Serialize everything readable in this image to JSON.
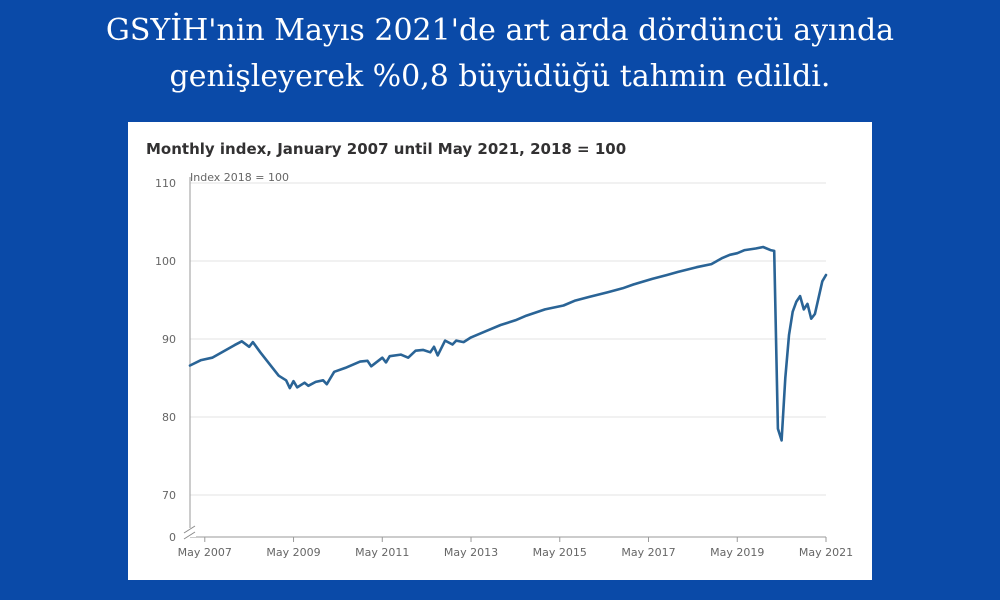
{
  "headline": {
    "line1": "GSYİH'nin Mayıs 2021'de art arda dördüncü ayında",
    "line2": "genişleyerek %0,8 büyüdüğü tahmin edildi."
  },
  "colors": {
    "background": "#0a4aa8",
    "line": "#2a6496",
    "card": "#ffffff"
  },
  "chart_data": {
    "type": "line",
    "title": "Monthly index, January 2007 until May 2021, 2018 = 100",
    "ylabel": "Index 2018 = 100",
    "ylim": [
      0,
      110
    ],
    "axis_break": [
      0,
      70
    ],
    "y_ticks": [
      "110",
      "100",
      "90",
      "80",
      "70",
      "0"
    ],
    "x_ticks": [
      "May 2007",
      "May 2009",
      "May 2011",
      "May 2013",
      "May 2015",
      "May 2017",
      "May 2019",
      "May 2021"
    ],
    "grid": true,
    "series": [
      {
        "points": [
          [
            "2007-01",
            86.6
          ],
          [
            "2007-04",
            87.3
          ],
          [
            "2007-07",
            87.6
          ],
          [
            "2007-10",
            88.4
          ],
          [
            "2008-01",
            89.2
          ],
          [
            "2008-03",
            89.7
          ],
          [
            "2008-05",
            89.0
          ],
          [
            "2008-06",
            89.6
          ],
          [
            "2008-08",
            88.3
          ],
          [
            "2008-11",
            86.5
          ],
          [
            "2009-01",
            85.3
          ],
          [
            "2009-03",
            84.7
          ],
          [
            "2009-04",
            83.7
          ],
          [
            "2009-05",
            84.6
          ],
          [
            "2009-06",
            83.8
          ],
          [
            "2009-08",
            84.4
          ],
          [
            "2009-09",
            84.0
          ],
          [
            "2009-11",
            84.5
          ],
          [
            "2010-01",
            84.7
          ],
          [
            "2010-02",
            84.2
          ],
          [
            "2010-04",
            85.8
          ],
          [
            "2010-07",
            86.3
          ],
          [
            "2010-11",
            87.1
          ],
          [
            "2011-01",
            87.2
          ],
          [
            "2011-02",
            86.5
          ],
          [
            "2011-05",
            87.6
          ],
          [
            "2011-06",
            87.0
          ],
          [
            "2011-07",
            87.8
          ],
          [
            "2011-10",
            88.0
          ],
          [
            "2011-12",
            87.6
          ],
          [
            "2012-02",
            88.5
          ],
          [
            "2012-04",
            88.6
          ],
          [
            "2012-06",
            88.3
          ],
          [
            "2012-07",
            89.0
          ],
          [
            "2012-08",
            87.9
          ],
          [
            "2012-10",
            89.8
          ],
          [
            "2012-12",
            89.3
          ],
          [
            "2013-01",
            89.8
          ],
          [
            "2013-03",
            89.6
          ],
          [
            "2013-05",
            90.2
          ],
          [
            "2013-09",
            91.0
          ],
          [
            "2014-01",
            91.8
          ],
          [
            "2014-05",
            92.4
          ],
          [
            "2014-08",
            93.0
          ],
          [
            "2015-01",
            93.8
          ],
          [
            "2015-06",
            94.3
          ],
          [
            "2015-09",
            94.9
          ],
          [
            "2016-01",
            95.4
          ],
          [
            "2016-06",
            96.0
          ],
          [
            "2016-10",
            96.5
          ],
          [
            "2017-01",
            97.0
          ],
          [
            "2017-06",
            97.7
          ],
          [
            "2017-10",
            98.2
          ],
          [
            "2018-01",
            98.6
          ],
          [
            "2018-06",
            99.2
          ],
          [
            "2018-10",
            99.6
          ],
          [
            "2019-01",
            100.4
          ],
          [
            "2019-03",
            100.8
          ],
          [
            "2019-05",
            101.0
          ],
          [
            "2019-07",
            101.4
          ],
          [
            "2019-10",
            101.6
          ],
          [
            "2019-12",
            101.8
          ],
          [
            "2020-02",
            101.4
          ],
          [
            "2020-03",
            101.3
          ],
          [
            "2020-04",
            78.5
          ],
          [
            "2020-05",
            77.0
          ],
          [
            "2020-06",
            85.0
          ],
          [
            "2020-07",
            90.5
          ],
          [
            "2020-08",
            93.5
          ],
          [
            "2020-09",
            94.8
          ],
          [
            "2020-10",
            95.5
          ],
          [
            "2020-11",
            93.8
          ],
          [
            "2020-12",
            94.5
          ],
          [
            "2021-01",
            92.6
          ],
          [
            "2021-02",
            93.2
          ],
          [
            "2021-03",
            95.3
          ],
          [
            "2021-04",
            97.4
          ],
          [
            "2021-05",
            98.2
          ]
        ]
      }
    ]
  }
}
